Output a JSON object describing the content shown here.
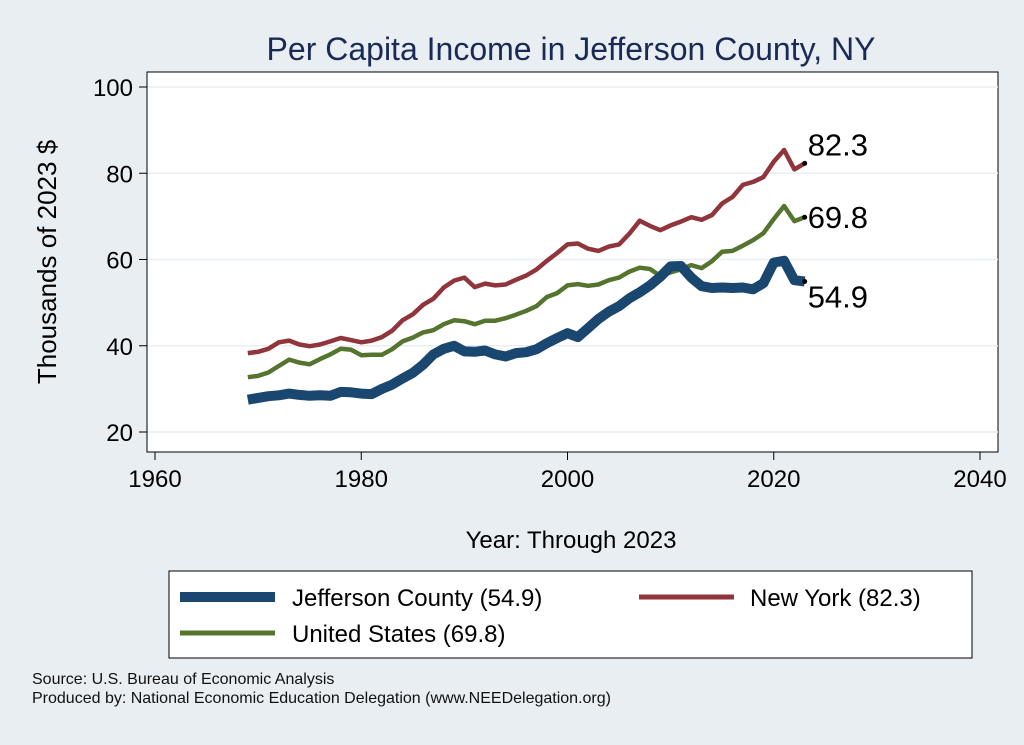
{
  "chart_data": {
    "type": "line",
    "title": "Per Capita Income in Jefferson County, NY",
    "xlabel": "Year: Through 2023",
    "ylabel": "Thousands of 2023 $",
    "xlim": [
      1960,
      2040
    ],
    "ylim": [
      20,
      100
    ],
    "x_ticks": [
      "1960",
      "1980",
      "2000",
      "2020",
      "2040"
    ],
    "y_ticks": [
      "20",
      "40",
      "60",
      "80",
      "100"
    ],
    "grid": true,
    "x": [
      1969,
      1970,
      1971,
      1972,
      1973,
      1974,
      1975,
      1976,
      1977,
      1978,
      1979,
      1980,
      1981,
      1982,
      1983,
      1984,
      1985,
      1986,
      1987,
      1988,
      1989,
      1990,
      1991,
      1992,
      1993,
      1994,
      1995,
      1996,
      1997,
      1998,
      1999,
      2000,
      2001,
      2002,
      2003,
      2004,
      2005,
      2006,
      2007,
      2008,
      2009,
      2010,
      2011,
      2012,
      2013,
      2014,
      2015,
      2016,
      2017,
      2018,
      2019,
      2020,
      2021,
      2022,
      2023
    ],
    "series": [
      {
        "name": "Jefferson County",
        "color": "#1a476f",
        "values": [
          27.5,
          27.9,
          28.3,
          28.5,
          28.9,
          28.6,
          28.4,
          28.5,
          28.4,
          29.3,
          29.2,
          28.9,
          28.8,
          30.0,
          31.0,
          32.4,
          33.7,
          35.6,
          38.0,
          39.3,
          40.0,
          38.7,
          38.6,
          38.9,
          38.0,
          37.5,
          38.3,
          38.5,
          39.2,
          40.6,
          41.8,
          42.9,
          42.0,
          44.1,
          46.2,
          47.9,
          49.2,
          51.0,
          52.4,
          54.0,
          56.0,
          58.4,
          58.5,
          55.8,
          53.8,
          53.4,
          53.5,
          53.4,
          53.5,
          53.1,
          54.5,
          59.3,
          59.7,
          55.2,
          54.9
        ]
      },
      {
        "name": "New York",
        "color": "#90353b",
        "values": [
          38.3,
          38.6,
          39.3,
          40.8,
          41.2,
          40.3,
          39.9,
          40.3,
          41.0,
          41.8,
          41.3,
          40.8,
          41.2,
          42.0,
          43.5,
          45.9,
          47.3,
          49.5,
          50.9,
          53.5,
          55.1,
          55.8,
          53.6,
          54.4,
          54.0,
          54.2,
          55.3,
          56.3,
          57.7,
          59.7,
          61.5,
          63.5,
          63.7,
          62.5,
          62.0,
          63.0,
          63.5,
          66.0,
          69.0,
          67.8,
          66.8,
          67.9,
          68.8,
          69.8,
          69.2,
          70.3,
          73.0,
          74.5,
          77.3,
          78.0,
          79.1,
          82.7,
          85.4,
          80.9,
          82.3
        ]
      },
      {
        "name": "United States",
        "color": "#55752f",
        "values": [
          32.7,
          33.0,
          33.8,
          35.3,
          36.8,
          36.1,
          35.7,
          36.9,
          38.0,
          39.3,
          39.1,
          37.8,
          37.9,
          37.9,
          39.2,
          41.0,
          41.9,
          43.1,
          43.6,
          45.0,
          45.9,
          45.7,
          45.0,
          45.8,
          45.8,
          46.4,
          47.2,
          48.1,
          49.2,
          51.3,
          52.2,
          54.0,
          54.3,
          53.9,
          54.2,
          55.2,
          55.8,
          57.2,
          58.1,
          57.8,
          56.2,
          57.0,
          57.7,
          58.7,
          58.0,
          59.6,
          61.8,
          62.0,
          63.2,
          64.5,
          66.1,
          69.4,
          72.4,
          68.9,
          69.8
        ]
      }
    ],
    "end_labels": [
      "54.9",
      "82.3",
      "69.8"
    ],
    "legend": {
      "placement": "bottom",
      "entries": [
        "Jefferson County (54.9)",
        "New York (82.3)",
        "United States (69.8)"
      ]
    }
  },
  "source": {
    "line1": "Source: U.S. Bureau of Economic Analysis",
    "line2": "Produced by: National Economic Education Delegation (www.NEEDelegation.org)"
  }
}
